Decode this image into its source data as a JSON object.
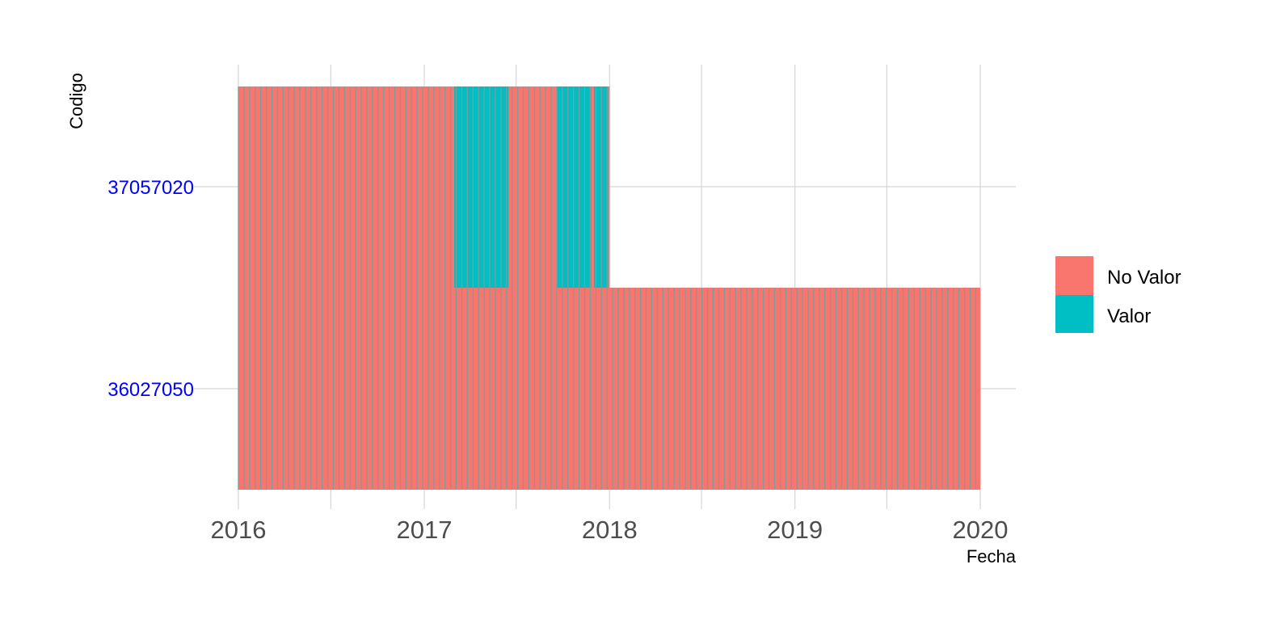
{
  "chart_data": {
    "type": "heatmap",
    "title": "",
    "xlabel": "Fecha",
    "ylabel": "Codigo",
    "x_ticks": [
      "2016",
      "2017",
      "2018",
      "2019",
      "2020"
    ],
    "x_range": [
      "2016-01-01",
      "2020-01-01"
    ],
    "y_categories": [
      "36027050",
      "37057020"
    ],
    "legend": {
      "position": "right",
      "entries": [
        {
          "label": "No Valor",
          "color": "#F8766D"
        },
        {
          "label": "Valor",
          "color": "#00BFC4"
        }
      ]
    },
    "tile_border_color": "#7F9C9C",
    "grid": true,
    "series": [
      {
        "name": "37057020",
        "start": "2016-01-01",
        "end": "2017-12-31",
        "valor_intervals": [
          [
            "2017-03-01",
            "2017-05-31"
          ],
          [
            "2017-06-01",
            "2017-06-15"
          ],
          [
            "2017-09-20",
            "2017-11-25"
          ],
          [
            "2017-12-01",
            "2017-12-28"
          ]
        ]
      },
      {
        "name": "36027050",
        "start": "2016-01-01",
        "end": "2019-12-31",
        "valor_intervals": []
      }
    ]
  }
}
